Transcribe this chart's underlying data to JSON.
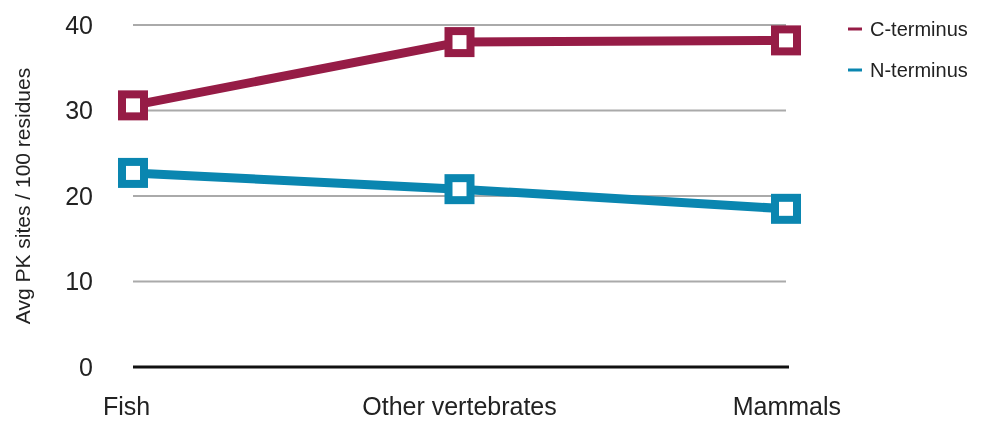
{
  "chart_data": {
    "type": "line",
    "ylabel": "Avg PK sites / 100 residues",
    "categories": [
      "Fish",
      "Other vertebrates",
      "Mammals"
    ],
    "series": [
      {
        "name": "C-terminus",
        "color": "#961c46",
        "values": [
          30.6,
          38.0,
          38.2
        ]
      },
      {
        "name": "N-terminus",
        "color": "#0a86b0",
        "values": [
          22.7,
          20.8,
          18.5
        ]
      }
    ],
    "ylim": [
      0,
      40
    ],
    "yticks": [
      0,
      10,
      20,
      30,
      40
    ],
    "grid": "y",
    "legend": "top right",
    "marker": "square",
    "line_style": "solid"
  }
}
